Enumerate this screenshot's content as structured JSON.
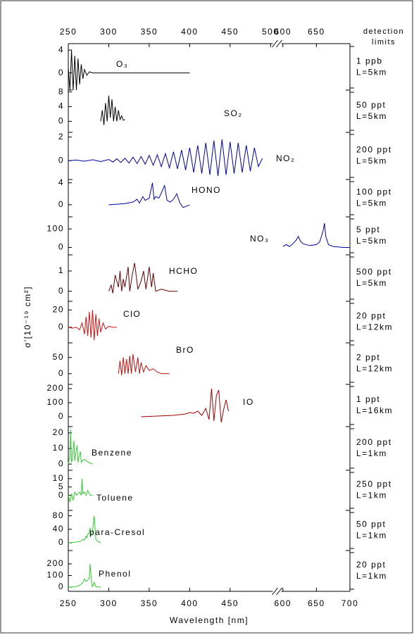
{
  "chart_data": {
    "type": "line",
    "xlabel": "Wavelength [nm]",
    "ylabel": "σ'[10⁻¹⁹ cm²]",
    "right_header": [
      "detection",
      "limits"
    ],
    "xlim": [
      250,
      700
    ],
    "xbreak": [
      505,
      595
    ],
    "xticks": [
      250,
      300,
      350,
      400,
      450,
      600,
      650,
      700
    ],
    "x2ticks": [
      250,
      300,
      350,
      400,
      450,
      500,
      600,
      650
    ],
    "panels": [
      {
        "label": "O₃",
        "color": "#000000",
        "ylim": [
          -3,
          5
        ],
        "yticks": [
          4,
          0
        ],
        "detection_limit": "1 ppb",
        "path_length": "L=5km",
        "x": [
          250,
          252,
          254,
          256,
          258,
          260,
          262,
          264,
          266,
          268,
          270,
          273,
          276,
          280,
          290,
          400
        ],
        "values": [
          1,
          -3,
          4,
          -3,
          3,
          -3,
          2.5,
          -2,
          1.5,
          -1,
          0.6,
          -0.4,
          0.2,
          0,
          0,
          0
        ]
      },
      {
        "label": "SO₂",
        "color": "#000000",
        "ylim": [
          -3,
          8.5
        ],
        "yticks": [
          8,
          4,
          0
        ],
        "detection_limit": "50 ppt",
        "path_length": "L=5km",
        "x": [
          290,
          292,
          294,
          296,
          298,
          300,
          302,
          304,
          306,
          308,
          310,
          312,
          314,
          316,
          318,
          320
        ],
        "values": [
          0,
          3,
          -1,
          5,
          0,
          7,
          1,
          6,
          0,
          4,
          0,
          3,
          0.5,
          1.5,
          0.3,
          0.5
        ]
      },
      {
        "label": "NO₂",
        "color": "#0000a0",
        "ylim": [
          -1.6,
          2.4
        ],
        "yticks": [
          2,
          0
        ],
        "detection_limit": "200 ppt",
        "path_length": "L=5km",
        "x": [
          250,
          260,
          270,
          280,
          290,
          300,
          305,
          310,
          315,
          320,
          325,
          330,
          335,
          340,
          345,
          350,
          355,
          360,
          365,
          370,
          375,
          380,
          385,
          390,
          395,
          400,
          405,
          410,
          415,
          420,
          425,
          430,
          435,
          440,
          445,
          450,
          455,
          460,
          465,
          470,
          475,
          480,
          485,
          490
        ],
        "values": [
          0,
          0.05,
          -0.05,
          0.08,
          -0.08,
          0.1,
          -0.12,
          0.15,
          -0.15,
          0.2,
          -0.2,
          0.3,
          -0.25,
          0.35,
          -0.3,
          0.45,
          -0.4,
          0.5,
          -0.5,
          0.6,
          -0.6,
          0.75,
          -0.7,
          0.9,
          -0.8,
          1.1,
          -1,
          1.3,
          -1.1,
          1.5,
          -1.2,
          1.7,
          -1.3,
          1.8,
          -1.2,
          1.6,
          -1.1,
          1.5,
          -1,
          1.3,
          -0.9,
          1.1,
          -0.5,
          0.2
        ]
      },
      {
        "label": "HONO",
        "color": "#0000a0",
        "ylim": [
          -2.2,
          4.6
        ],
        "yticks": [
          4,
          0
        ],
        "detection_limit": "100 ppt",
        "path_length": "L=5km",
        "x": [
          300,
          310,
          320,
          330,
          335,
          338,
          342,
          345,
          350,
          354,
          356,
          358,
          362,
          366,
          369,
          372,
          376,
          380,
          384,
          388,
          392,
          400
        ],
        "values": [
          0,
          0.1,
          0.2,
          0.5,
          1,
          0.3,
          1.5,
          0.8,
          1.2,
          4,
          1,
          1.5,
          1.2,
          2.5,
          3.5,
          0.8,
          0.5,
          1,
          2,
          0.3,
          -0.5,
          0
        ]
      },
      {
        "label": "NO₃",
        "color": "#0000a0",
        "ylim": [
          -40,
          165
        ],
        "yticks": [
          100,
          0
        ],
        "detection_limit": "5 ppt",
        "path_length": "L=5km",
        "x": [
          600,
          605,
          610,
          615,
          620,
          623,
          626,
          630,
          640,
          650,
          655,
          660,
          662,
          664,
          668,
          675,
          690,
          700
        ],
        "values": [
          5,
          15,
          5,
          20,
          40,
          60,
          35,
          20,
          10,
          15,
          30,
          90,
          130,
          60,
          15,
          5,
          0,
          0
        ]
      },
      {
        "label": "HCHO",
        "color": "#600000",
        "ylim": [
          -0.5,
          1.8
        ],
        "yticks": [
          1,
          0
        ],
        "detection_limit": "500 ppt",
        "path_length": "L=5km",
        "x": [
          300,
          303,
          305,
          308,
          312,
          314,
          316,
          318,
          320,
          324,
          326,
          329,
          332,
          336,
          340,
          343,
          346,
          350,
          353,
          355,
          358,
          365,
          375,
          385
        ],
        "values": [
          0,
          0.3,
          -0.1,
          0.8,
          0.2,
          1,
          0,
          0.6,
          0.2,
          1.2,
          0,
          0.8,
          1.4,
          0.1,
          0.5,
          1,
          0.1,
          1.2,
          0.2,
          0.9,
          0,
          0.1,
          0,
          0
        ]
      },
      {
        "label": "ClO",
        "color": "#d01010",
        "ylim": [
          -18,
          30
        ],
        "yticks": [
          20,
          0
        ],
        "detection_limit": "20 ppt",
        "path_length": "L=12km",
        "x": [
          250,
          255,
          260,
          264,
          267,
          270,
          272,
          274,
          276,
          278,
          280,
          282,
          284,
          286,
          288,
          290,
          293,
          296,
          300,
          305,
          310
        ],
        "values": [
          0,
          -1,
          0,
          -3,
          5,
          -8,
          12,
          -10,
          18,
          -12,
          20,
          -15,
          15,
          -10,
          10,
          -6,
          5,
          -2,
          1,
          0,
          0
        ]
      },
      {
        "label": "BrO",
        "color": "#c01010",
        "ylim": [
          -33,
          95
        ],
        "yticks": [
          50,
          0
        ],
        "detection_limit": "2 ppt",
        "path_length": "L=12km",
        "x": [
          312,
          314,
          316,
          318,
          320,
          322,
          324,
          326,
          328,
          330,
          333,
          336,
          338,
          340,
          343,
          346,
          350,
          355,
          360,
          365,
          375
        ],
        "values": [
          0,
          40,
          -5,
          50,
          0,
          45,
          0,
          55,
          0,
          60,
          5,
          50,
          0,
          35,
          5,
          25,
          10,
          15,
          5,
          0,
          0
        ]
      },
      {
        "label": "IO",
        "color": "#a00000",
        "ylim": [
          -70,
          230
        ],
        "yticks": [
          200,
          100,
          0
        ],
        "detection_limit": "1 ppt",
        "path_length": "L=16km",
        "x": [
          340,
          360,
          380,
          395,
          400,
          405,
          410,
          415,
          420,
          424,
          427,
          430,
          433,
          436,
          439,
          442,
          445,
          448
        ],
        "values": [
          0,
          5,
          10,
          20,
          30,
          25,
          40,
          10,
          60,
          -20,
          200,
          -30,
          150,
          190,
          -40,
          50,
          120,
          40
        ]
      },
      {
        "label": "Benzene",
        "color": "#33cc33",
        "ylim": [
          -4,
          24
        ],
        "yticks": [
          20,
          10,
          0
        ],
        "detection_limit": "200 ppt",
        "path_length": "L=1km",
        "x": [
          250,
          252,
          253,
          254,
          255,
          257,
          258,
          259,
          261,
          262,
          263,
          265,
          266,
          267,
          270,
          275,
          280
        ],
        "values": [
          0,
          5,
          22,
          1,
          3,
          15,
          2,
          6,
          12,
          1,
          4,
          8,
          1,
          2,
          3,
          1,
          0
        ]
      },
      {
        "label": "Toluene",
        "color": "#33cc33",
        "ylim": [
          -9,
          15
        ],
        "yticks": [
          10,
          5,
          0
        ],
        "detection_limit": "250 ppt",
        "path_length": "L=1km",
        "x": [
          250,
          252,
          254,
          256,
          258,
          260,
          262,
          264,
          266,
          267,
          268,
          270,
          272,
          274,
          277,
          280
        ],
        "values": [
          0,
          -4,
          1,
          -3,
          2,
          0,
          1,
          2,
          0,
          10,
          1,
          2,
          0,
          3,
          0,
          0
        ]
      },
      {
        "label": "para-Cresol",
        "color": "#33cc33",
        "ylim": [
          -23,
          96
        ],
        "yticks": [
          80,
          40,
          0
        ],
        "detection_limit": "50 ppt",
        "path_length": "L=1km",
        "x": [
          250,
          260,
          266,
          268,
          270,
          272,
          273,
          274,
          276,
          277,
          278,
          280,
          281,
          282,
          284,
          286,
          290
        ],
        "values": [
          0,
          2,
          5,
          10,
          8,
          20,
          15,
          25,
          30,
          45,
          20,
          35,
          60,
          80,
          10,
          5,
          0
        ]
      },
      {
        "label": "Phenol",
        "color": "#33cc33",
        "ylim": [
          -36,
          315
        ],
        "yticks": [
          200,
          100,
          0
        ],
        "detection_limit": "20 ppt",
        "path_length": "L=1km",
        "x": [
          250,
          260,
          265,
          268,
          270,
          272,
          274,
          276,
          277,
          279,
          280,
          282,
          284,
          290
        ],
        "values": [
          0,
          5,
          20,
          40,
          70,
          50,
          60,
          80,
          200,
          20,
          5,
          40,
          5,
          0
        ]
      }
    ]
  }
}
